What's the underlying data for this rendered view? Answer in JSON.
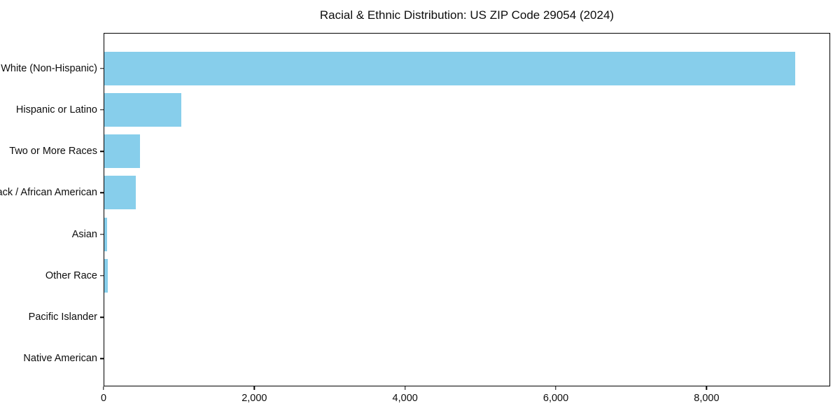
{
  "title": "Racial & Ethnic Distribution: US ZIP Code 29054 (2024)",
  "chart_data": {
    "type": "bar",
    "orientation": "horizontal",
    "title": "Racial & Ethnic Distribution: US ZIP Code 29054 (2024)",
    "xlabel": "",
    "ylabel": "",
    "categories": [
      "White (Non-Hispanic)",
      "Hispanic or Latino",
      "Two or More Races",
      "Black / African American",
      "Asian",
      "Other Race",
      "Pacific Islander",
      "Native American"
    ],
    "values": [
      9180,
      1020,
      475,
      420,
      40,
      45,
      0,
      0
    ],
    "xlim": [
      0,
      9640
    ],
    "x_ticks": [
      0,
      2000,
      4000,
      6000,
      8000
    ],
    "x_tick_labels": [
      "0",
      "2,000",
      "4,000",
      "6,000",
      "8,000"
    ],
    "bar_color": "#87CEEB",
    "axis_color": "#000000",
    "background_color": "#FFFFFF",
    "grid": false,
    "legend": false
  }
}
